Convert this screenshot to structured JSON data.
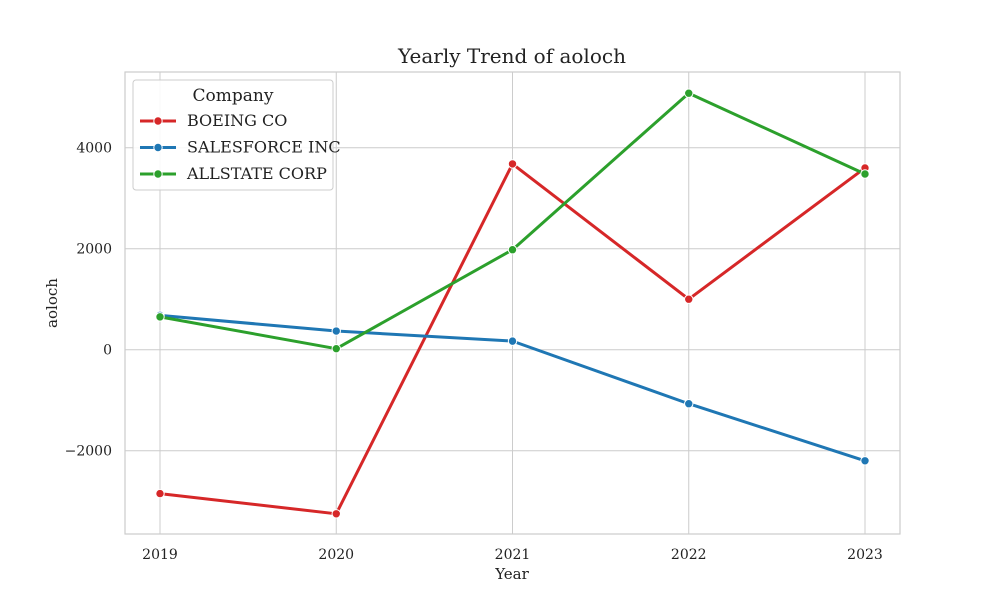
{
  "chart_data": {
    "type": "line",
    "title": "Yearly Trend of aoloch",
    "xlabel": "Year",
    "ylabel": "aoloch",
    "x": [
      "2019",
      "2020",
      "2021",
      "2022",
      "2023"
    ],
    "ylim": [
      -3650,
      5500
    ],
    "yticks": [
      -2000,
      0,
      2000,
      4000
    ],
    "ytick_labels": [
      "−2000",
      "0",
      "2000",
      "4000"
    ],
    "grid": true,
    "legend": {
      "title": "Company",
      "placement": "top-left"
    },
    "series": [
      {
        "name": "BOEING CO",
        "color": "#d62728",
        "values": [
          -2850,
          -3250,
          3680,
          1000,
          3600
        ]
      },
      {
        "name": "SALESFORCE INC",
        "color": "#1f77b4",
        "values": [
          680,
          370,
          170,
          -1070,
          -2200
        ]
      },
      {
        "name": "ALLSTATE CORP",
        "color": "#2ca02c",
        "values": [
          650,
          20,
          1980,
          5080,
          3480
        ]
      }
    ]
  }
}
